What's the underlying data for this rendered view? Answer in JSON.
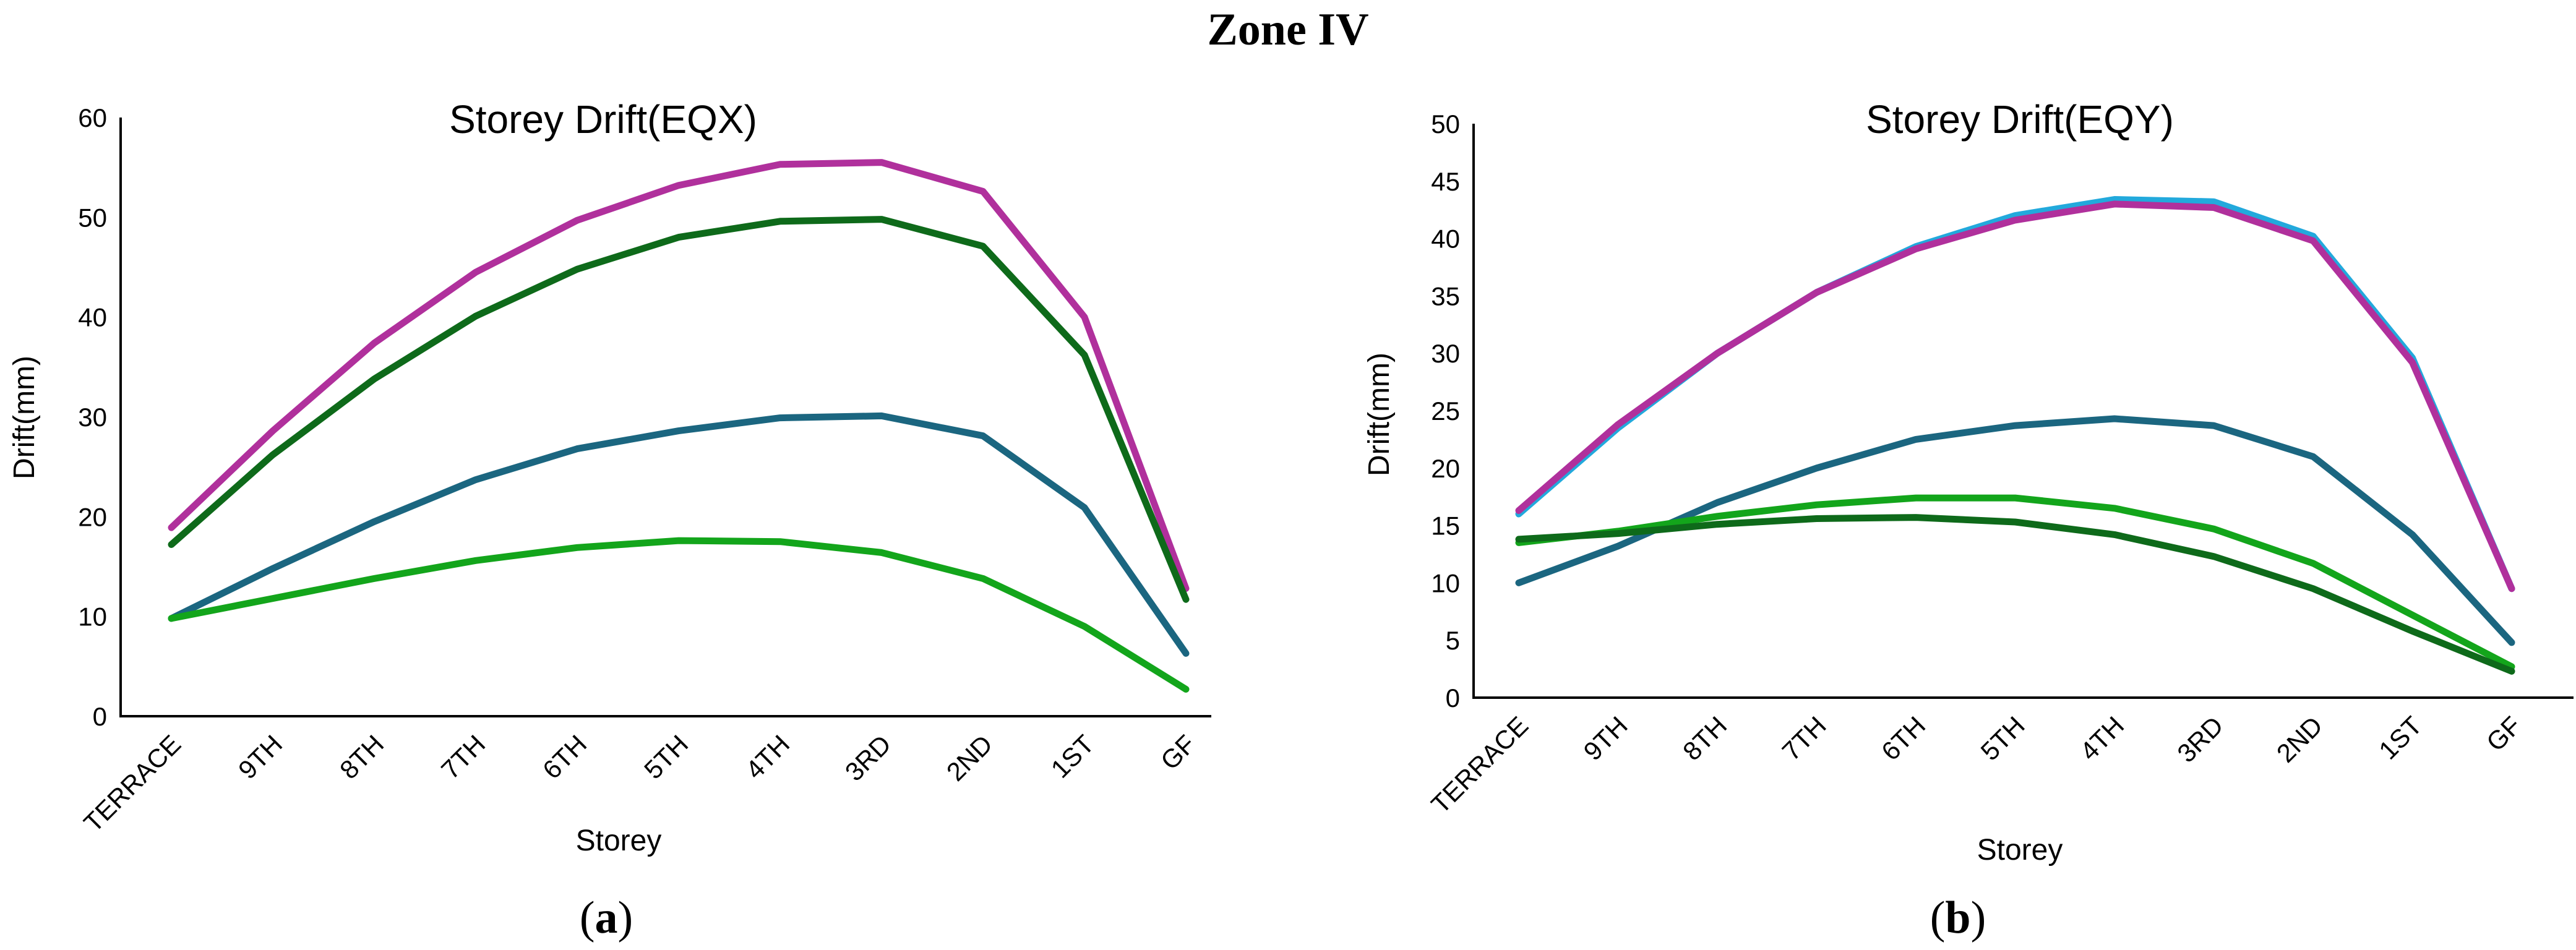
{
  "figure_title": "Zone IV",
  "chart_data": [
    {
      "type": "line",
      "title": "Storey Drift(EQX)",
      "xlabel": "Storey",
      "ylabel": "Drift(mm)",
      "caption": {
        "open": "(",
        "letter": "a",
        "close": ")"
      },
      "categories": [
        "TERRACE",
        "9TH",
        "8TH",
        "7TH",
        "6TH",
        "5TH",
        "4TH",
        "3RD",
        "2ND",
        "1ST",
        "GF"
      ],
      "ylim": [
        0,
        60
      ],
      "yticks": [
        0,
        10,
        20,
        30,
        40,
        50,
        60
      ],
      "grid": false,
      "series": [
        {
          "color": "#1b6680",
          "values": [
            9.8,
            14.8,
            19.5,
            23.7,
            26.8,
            28.6,
            29.9,
            30.1,
            28.1,
            20.9,
            6.3
          ]
        },
        {
          "color": "#13a51b",
          "values": [
            9.8,
            11.8,
            13.8,
            15.6,
            16.9,
            17.6,
            17.5,
            16.4,
            13.8,
            9.0,
            2.7
          ]
        },
        {
          "color": "#b0309c",
          "values": [
            18.9,
            28.6,
            37.4,
            44.5,
            49.7,
            53.2,
            55.3,
            55.5,
            52.6,
            40.0,
            12.8
          ]
        },
        {
          "color": "#0e6a1a",
          "values": [
            17.2,
            26.2,
            33.8,
            40.1,
            44.8,
            48.0,
            49.6,
            49.8,
            47.1,
            36.2,
            11.7
          ]
        }
      ]
    },
    {
      "type": "line",
      "title": "Storey Drift(EQY)",
      "xlabel": "Storey",
      "ylabel": "Drift(mm)",
      "caption": {
        "open": "(",
        "letter": "b",
        "close": ")"
      },
      "categories": [
        "TERRACE",
        "9TH",
        "8TH",
        "7TH",
        "6TH",
        "5TH",
        "4TH",
        "3RD",
        "2ND",
        "1ST",
        "GF"
      ],
      "ylim": [
        0,
        50
      ],
      "yticks": [
        0,
        5,
        10,
        15,
        20,
        25,
        30,
        35,
        40,
        45,
        50
      ],
      "grid": false,
      "series": [
        {
          "color": "#1b6680",
          "values": [
            10.0,
            13.2,
            17.0,
            20.0,
            22.5,
            23.7,
            24.3,
            23.7,
            21.0,
            14.2,
            4.8
          ]
        },
        {
          "color": "#13a51b",
          "values": [
            13.5,
            14.5,
            15.8,
            16.8,
            17.4,
            17.4,
            16.5,
            14.7,
            11.7,
            7.2,
            2.7
          ]
        },
        {
          "color": "#0e6a1a",
          "values": [
            13.8,
            14.3,
            15.1,
            15.6,
            15.7,
            15.3,
            14.2,
            12.3,
            9.5,
            5.8,
            2.3
          ]
        },
        {
          "color": "#22a9dc",
          "values": [
            16.0,
            23.5,
            30.0,
            35.3,
            39.3,
            42.0,
            43.4,
            43.2,
            40.2,
            29.6,
            9.5
          ]
        },
        {
          "color": "#b0309c",
          "values": [
            16.3,
            23.8,
            30.0,
            35.3,
            39.1,
            41.6,
            43.0,
            42.7,
            39.8,
            29.2,
            9.5
          ]
        }
      ]
    }
  ]
}
